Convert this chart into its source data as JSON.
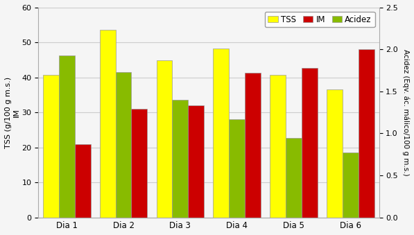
{
  "categories": [
    "Dia 1",
    "Dia 2",
    "Dia 3",
    "Dia 4",
    "Dia 5",
    "Dia 6"
  ],
  "TSS": [
    40.7,
    53.7,
    45.0,
    48.3,
    40.7,
    36.5
  ],
  "IM": [
    21.0,
    31.0,
    32.0,
    41.3,
    42.7,
    48.0
  ],
  "Acidez": [
    46.3,
    41.6,
    33.6,
    28.0,
    22.7,
    18.5
  ],
  "color_TSS": "#FFFF00",
  "color_IM": "#CC0000",
  "color_Acidez": "#88BB00",
  "bar_edge_color": "#999999",
  "ylim_left": [
    0,
    60
  ],
  "ylim_right": [
    0,
    2.5
  ],
  "yticks_left": [
    0,
    10,
    20,
    30,
    40,
    50,
    60
  ],
  "yticks_right": [
    0.0,
    0.5,
    1.0,
    1.5,
    2.0,
    2.5
  ],
  "ylabel_left": "TSS (g/100 g m.s.)\nIM",
  "ylabel_right": "Acidez (Eqv. ác. málico/100 g m.s.)",
  "legend_labels": [
    "TSS",
    "IM",
    "Acidez"
  ],
  "background_color": "#f5f5f5",
  "grid_color": "#cccccc",
  "bar_width": 0.28
}
